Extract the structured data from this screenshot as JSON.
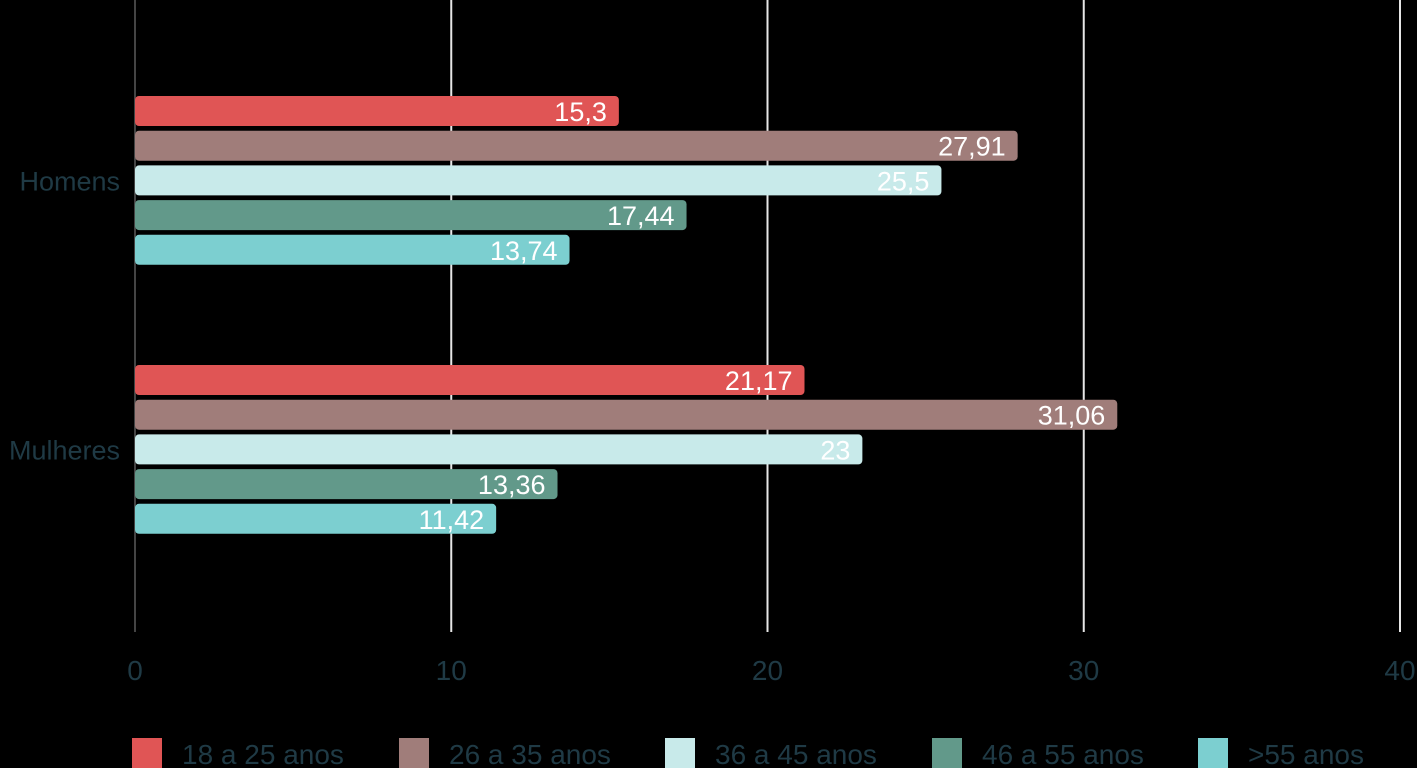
{
  "chart_data": {
    "type": "bar",
    "orientation": "horizontal",
    "categories": [
      "Homens",
      "Mulheres"
    ],
    "series": [
      {
        "name": "18 a 25 anos",
        "values": [
          15.3,
          21.17
        ],
        "labels": [
          "15,3",
          "21,17"
        ],
        "color": "#e05555"
      },
      {
        "name": "26 a 35 anos",
        "values": [
          27.91,
          31.06
        ],
        "labels": [
          "27,91",
          "31,06"
        ],
        "color": "#a07d7a"
      },
      {
        "name": "36 a 45 anos",
        "values": [
          25.5,
          23
        ],
        "labels": [
          "25,5",
          "23"
        ],
        "color": "#c8eaea"
      },
      {
        "name": "46 a 55 anos",
        "values": [
          17.44,
          13.36
        ],
        "labels": [
          "17,44",
          "13,36"
        ],
        "color": "#62998a"
      },
      {
        "name": ">55 anos",
        "values": [
          13.74,
          11.42
        ],
        "labels": [
          "13,74",
          "11,42"
        ],
        "color": "#7ccfd0"
      }
    ],
    "xlim": [
      0,
      40
    ],
    "ticks": [
      0,
      10,
      20,
      30,
      40
    ],
    "tick_labels": [
      "0",
      "10",
      "20",
      "30",
      "40"
    ],
    "grid": true,
    "legend": "bottom",
    "colors": {
      "background": "#000000",
      "text": "#1f3a45",
      "grid": "#e6e6e6",
      "axis": "#444444"
    }
  }
}
